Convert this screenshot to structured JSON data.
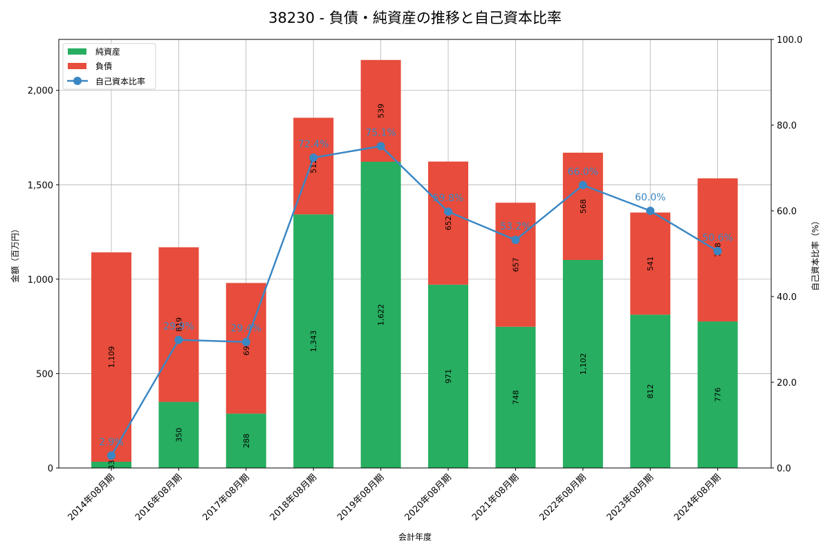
{
  "chart_data": {
    "type": "bar",
    "subtype": "stacked_bar_with_line_secondary_axis",
    "title": "38230 - 負債・純資産の推移と自己資本比率",
    "xlabel": "会計年度",
    "ylabel": "金額（百万円）",
    "y2label": "自己資本比率（%）",
    "ylim": [
      0,
      2270
    ],
    "y2lim": [
      0,
      100
    ],
    "yticks": [
      "0",
      "500",
      "1,000",
      "1,500",
      "2,000"
    ],
    "y2ticks": [
      "0.0",
      "20.0",
      "40.0",
      "60.0",
      "80.0",
      "100.0"
    ],
    "grid": true,
    "legend_position": "upper left",
    "categories": [
      "2014年08月期",
      "2016年08月期",
      "2017年08月期",
      "2018年08月期",
      "2019年08月期",
      "2020年08月期",
      "2021年08月期",
      "2022年08月期",
      "2023年08月期",
      "2024年08月期"
    ],
    "series": [
      {
        "name": "純資産",
        "type": "bar",
        "color": "#27ae60",
        "values": [
          33,
          350,
          288,
          1343,
          1622,
          971,
          748,
          1102,
          812,
          776
        ],
        "labels": [
          "33",
          "350",
          "288",
          "1,343",
          "1,622",
          "971",
          "748",
          "1,102",
          "812",
          "776"
        ]
      },
      {
        "name": "負債",
        "type": "bar",
        "color": "#e74c3c",
        "values": [
          1109,
          819,
          692,
          512,
          539,
          652,
          657,
          568,
          541,
          758
        ],
        "labels": [
          "1,109",
          "819",
          "692",
          "512",
          "539",
          "652",
          "657",
          "568",
          "541",
          "758"
        ]
      },
      {
        "name": "自己資本比率",
        "type": "line",
        "axis": "right",
        "color": "#3a87c4",
        "values": [
          2.9,
          29.9,
          29.4,
          72.4,
          75.1,
          59.8,
          53.2,
          66.0,
          60.0,
          50.6
        ],
        "labels": [
          "2.9%",
          "29.9%",
          "29.4%",
          "72.4%",
          "75.1%",
          "59.8%",
          "53.2%",
          "66.0%",
          "60.0%",
          "50.6%"
        ]
      }
    ]
  }
}
